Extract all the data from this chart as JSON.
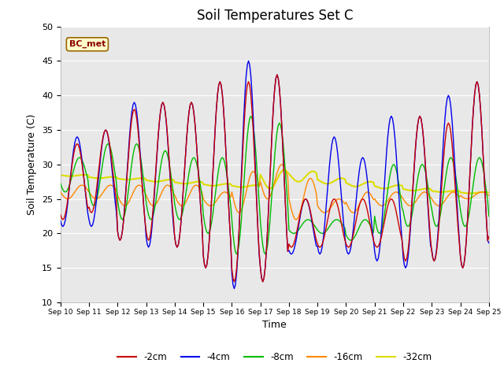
{
  "title": "Soil Temperatures Set C",
  "xlabel": "Time",
  "ylabel": "Soil Temperature (C)",
  "ylim": [
    10,
    50
  ],
  "xlim": [
    0,
    360
  ],
  "annotation": "BC_met",
  "background_color": "#e8e8e8",
  "plot_bg_color": "#e8e8e8",
  "legend_labels": [
    "-2cm",
    "-4cm",
    "-8cm",
    "-16cm",
    "-32cm"
  ],
  "legend_colors": [
    "#cc0000",
    "#0000ee",
    "#00bb00",
    "#ff8800",
    "#dddd00"
  ],
  "line_widths": [
    1.0,
    1.0,
    1.0,
    1.0,
    1.5
  ],
  "x_tick_labels": [
    "Sep 10",
    "Sep 11",
    "Sep 12",
    "Sep 13",
    "Sep 14",
    "Sep 15",
    "Sep 16",
    "Sep 17",
    "Sep 18",
    "Sep 19",
    "Sep 20",
    "Sep 21",
    "Sep 22",
    "Sep 23",
    "Sep 24",
    "Sep 25"
  ],
  "tick_positions": [
    0,
    24,
    48,
    72,
    96,
    120,
    144,
    168,
    192,
    216,
    240,
    264,
    288,
    312,
    336,
    360
  ],
  "yticks": [
    10,
    15,
    20,
    25,
    30,
    35,
    40,
    45,
    50
  ],
  "figsize": [
    6.4,
    4.8
  ],
  "dpi": 100
}
